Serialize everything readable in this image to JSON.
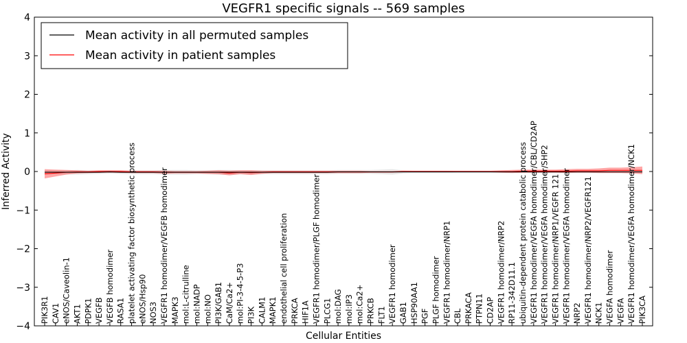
{
  "chart_data": {
    "type": "line",
    "title": "VEGFR1 specific signals -- 569 samples",
    "xlabel": "Cellular Entities",
    "ylabel": "Inferred Activity",
    "ylim": [
      -4,
      4
    ],
    "yticks": [
      -4,
      -3,
      -2,
      -1,
      0,
      1,
      2,
      3,
      4
    ],
    "yticklabels": [
      "−4",
      "−3",
      "−2",
      "−1",
      "0",
      "1",
      "2",
      "3",
      "4"
    ],
    "legend": {
      "location": "top-left",
      "entries": [
        {
          "label": "Mean activity in all permuted samples",
          "color": "#000000"
        },
        {
          "label": "Mean activity in patient samples",
          "color": "#ff0000"
        }
      ]
    },
    "categories": [
      "PIK3R1",
      "CAV1",
      "eNOS/Caveolin-1",
      "AKT1",
      "PDPK1",
      "VEGFB",
      "VEGFB homodimer",
      "RASA1",
      "platelet activating factor biosynthetic process",
      "eNOS/Hsp90",
      "NOS3",
      "VEGFR1 homodimer/VEGFB homodimer",
      "MAPK3",
      "mol:L-citrulline",
      "mol:NADP",
      "mol:NO",
      "PI3K/GAB1",
      "CaM/Ca2+",
      "mol:PI-3-4-5-P3",
      "PI3K",
      "CALM1",
      "MAPK1",
      "endothelial cell proliferation",
      "PRKCA",
      "HIF1A",
      "VEGFR1 homodimer/PLGF homodimer",
      "PLCG1",
      "mol:DAG",
      "mol:IP3",
      "mol:Ca2+",
      "PRKCB",
      "FLT1",
      "VEGFR1 homodimer",
      "GAB1",
      "HSP90AA1",
      "PGF",
      "PLGF homodimer",
      "VEGFR1 homodimer/NRP1",
      "CBL",
      "PRKACA",
      "PTPN11",
      "CD2AP",
      "VEGFR1 homodimer/NRP2",
      "RP11-342D11.1",
      "ubiquitin-dependent protein catabolic process",
      "VEGFR1 homodimer/VEGFA homodimer/CBL/CD2AP",
      "VEGFR1 homodimer/VEGFA homodimer/SHP2",
      "VEGFR1 homodimer/NRP1/VEGFR 121",
      "VEGFR1 homodimer/VEGFA homodimer",
      "NRP2",
      "VEGFR1 homodimer/NRP2/VEGFR121",
      "NCK1",
      "VEGFA homodimer",
      "VEGFA",
      "VEGFR1 homodimer/VEGFA homodimer/NCK1",
      "PIK3CA"
    ],
    "series": [
      {
        "name": "Mean activity in all permuted samples",
        "color": "#000000",
        "values": [
          -0.02,
          -0.02,
          -0.02,
          -0.02,
          -0.02,
          -0.02,
          -0.01,
          -0.02,
          -0.02,
          -0.02,
          -0.02,
          -0.02,
          -0.02,
          -0.02,
          -0.02,
          -0.02,
          -0.02,
          -0.02,
          -0.02,
          -0.02,
          -0.02,
          -0.02,
          -0.02,
          -0.02,
          -0.02,
          -0.02,
          -0.02,
          -0.01,
          -0.01,
          -0.01,
          -0.01,
          -0.01,
          -0.01,
          -0.01,
          -0.01,
          -0.01,
          -0.01,
          -0.01,
          -0.01,
          -0.01,
          -0.01,
          -0.01,
          -0.01,
          -0.01,
          -0.01,
          -0.01,
          -0.01,
          -0.01,
          -0.01,
          -0.01,
          -0.01,
          -0.01,
          -0.01,
          -0.01,
          -0.01,
          -0.01
        ],
        "band": [
          0.05,
          0.05,
          0.05,
          0.06,
          0.05,
          0.04,
          0.04,
          0.04,
          0.05,
          0.05,
          0.05,
          0.06,
          0.06,
          0.06,
          0.05,
          0.05,
          0.06,
          0.06,
          0.05,
          0.05,
          0.05,
          0.05,
          0.05,
          0.05,
          0.05,
          0.05,
          0.05,
          0.05,
          0.05,
          0.05,
          0.05,
          0.06,
          0.07,
          0.04,
          0.03,
          0.03,
          0.03,
          0.03,
          0.02,
          0.02,
          0.02,
          0.02,
          0.02,
          0.02,
          0.02,
          0.02,
          0.02,
          0.02,
          0.02,
          0.02,
          0.02,
          0.02,
          0.02,
          0.02,
          0.02,
          0.02
        ]
      },
      {
        "name": "Mean activity in patient samples",
        "color": "#ff0000",
        "values": [
          -0.06,
          -0.04,
          -0.02,
          -0.01,
          -0.01,
          0.0,
          0.0,
          0.0,
          -0.01,
          -0.01,
          -0.01,
          -0.02,
          -0.02,
          -0.02,
          -0.02,
          -0.02,
          -0.02,
          -0.04,
          -0.02,
          -0.03,
          -0.02,
          -0.01,
          -0.01,
          -0.01,
          -0.01,
          -0.01,
          -0.01,
          -0.01,
          -0.01,
          -0.01,
          -0.01,
          -0.01,
          -0.01,
          0.0,
          0.0,
          0.0,
          0.0,
          0.0,
          0.0,
          0.0,
          0.0,
          0.0,
          0.0,
          0.0,
          0.01,
          0.01,
          0.01,
          0.01,
          0.01,
          0.02,
          0.02,
          0.02,
          0.03,
          0.03,
          0.03,
          0.03
        ],
        "band": [
          0.12,
          0.09,
          0.06,
          0.04,
          0.03,
          0.03,
          0.03,
          0.03,
          0.03,
          0.03,
          0.03,
          0.04,
          0.03,
          0.03,
          0.03,
          0.04,
          0.05,
          0.06,
          0.05,
          0.06,
          0.04,
          0.03,
          0.03,
          0.03,
          0.03,
          0.03,
          0.03,
          0.03,
          0.03,
          0.03,
          0.02,
          0.02,
          0.02,
          0.02,
          0.02,
          0.02,
          0.02,
          0.02,
          0.02,
          0.02,
          0.02,
          0.02,
          0.03,
          0.04,
          0.04,
          0.04,
          0.04,
          0.04,
          0.05,
          0.05,
          0.05,
          0.06,
          0.07,
          0.07,
          0.08,
          0.1
        ]
      }
    ]
  }
}
